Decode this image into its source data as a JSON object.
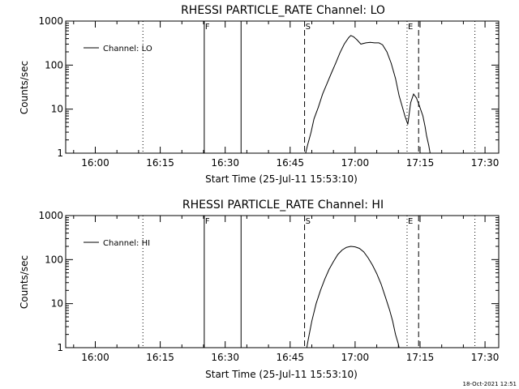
{
  "footer": {
    "timestamp": "18-Oct-2021 12:51"
  },
  "chart_data": [
    {
      "type": "line",
      "title": "RHESSI PARTICLE_RATE Channel: LO",
      "xlabel": "Start Time (25-Jul-11 15:53:10)",
      "ylabel": "Counts/sec",
      "legend": "Channel: LO",
      "legend_position": "top-left",
      "yscale": "log",
      "ylim": [
        1,
        1000
      ],
      "xlim": [
        "15:53:10",
        "17:33:10"
      ],
      "x_ticks": [
        "16:00",
        "16:15",
        "16:30",
        "16:45",
        "17:00",
        "17:15",
        "17:30"
      ],
      "y_ticks": [
        "1",
        "10",
        "100",
        "1000"
      ],
      "grid": false,
      "vertical_lines": [
        {
          "time": "16:11:00",
          "style": "dotted",
          "label": ""
        },
        {
          "time": "16:25:10",
          "style": "solid",
          "label": "F"
        },
        {
          "time": "16:33:40",
          "style": "solid",
          "label": ""
        },
        {
          "time": "16:48:20",
          "style": "dashed",
          "label": "S"
        },
        {
          "time": "17:12:00",
          "style": "dotted",
          "label": "E"
        },
        {
          "time": "17:14:40",
          "style": "dashed",
          "label": ""
        },
        {
          "time": "17:27:40",
          "style": "dotted",
          "label": ""
        }
      ],
      "series": [
        {
          "name": "Channel: LO",
          "points": [
            [
              "16:48:20",
              0.8
            ],
            [
              "16:49:00",
              1.5
            ],
            [
              "16:49:50",
              3.0
            ],
            [
              "16:50:30",
              6.0
            ],
            [
              "16:51:30",
              11
            ],
            [
              "16:52:30",
              22
            ],
            [
              "16:53:30",
              38
            ],
            [
              "16:54:30",
              65
            ],
            [
              "16:55:30",
              110
            ],
            [
              "16:56:30",
              190
            ],
            [
              "16:57:30",
              300
            ],
            [
              "16:58:30",
              420
            ],
            [
              "16:59:00",
              470
            ],
            [
              "16:59:40",
              440
            ],
            [
              "17:00:30",
              370
            ],
            [
              "17:01:20",
              300
            ],
            [
              "17:02:30",
              320
            ],
            [
              "17:03:30",
              330
            ],
            [
              "17:04:30",
              320
            ],
            [
              "17:05:30",
              320
            ],
            [
              "17:06:20",
              290
            ],
            [
              "17:07:20",
              200
            ],
            [
              "17:08:20",
              110
            ],
            [
              "17:09:20",
              50
            ],
            [
              "17:10:10",
              20
            ],
            [
              "17:10:50",
              12
            ],
            [
              "17:11:30",
              7
            ],
            [
              "17:12:10",
              4.5
            ],
            [
              "17:12:50",
              14
            ],
            [
              "17:13:30",
              22
            ],
            [
              "17:14:10",
              18
            ],
            [
              "17:14:50",
              12
            ],
            [
              "17:15:40",
              7
            ],
            [
              "17:16:10",
              4
            ],
            [
              "17:16:30",
              2.5
            ],
            [
              "17:17:00",
              1.5
            ],
            [
              "17:17:30",
              0.8
            ]
          ]
        }
      ]
    },
    {
      "type": "line",
      "title": "RHESSI PARTICLE_RATE Channel: HI",
      "xlabel": "Start Time (25-Jul-11 15:53:10)",
      "ylabel": "Counts/sec",
      "legend": "Channel: HI",
      "legend_position": "top-left",
      "yscale": "log",
      "ylim": [
        1,
        1000
      ],
      "xlim": [
        "15:53:10",
        "17:33:10"
      ],
      "x_ticks": [
        "16:00",
        "16:15",
        "16:30",
        "16:45",
        "17:00",
        "17:15",
        "17:30"
      ],
      "y_ticks": [
        "1",
        "10",
        "100",
        "1000"
      ],
      "grid": false,
      "vertical_lines": [
        {
          "time": "16:11:00",
          "style": "dotted",
          "label": ""
        },
        {
          "time": "16:25:10",
          "style": "solid",
          "label": "F"
        },
        {
          "time": "16:33:40",
          "style": "solid",
          "label": ""
        },
        {
          "time": "16:48:20",
          "style": "dashed",
          "label": "S"
        },
        {
          "time": "17:12:00",
          "style": "dotted",
          "label": "E"
        },
        {
          "time": "17:14:40",
          "style": "dashed",
          "label": ""
        },
        {
          "time": "17:27:40",
          "style": "dotted",
          "label": ""
        }
      ],
      "series": [
        {
          "name": "Channel: HI",
          "points": [
            [
              "16:48:40",
              0.8
            ],
            [
              "16:49:10",
              1.5
            ],
            [
              "16:50:00",
              4.0
            ],
            [
              "16:51:00",
              10
            ],
            [
              "16:52:00",
              20
            ],
            [
              "16:53:00",
              36
            ],
            [
              "16:54:00",
              60
            ],
            [
              "16:55:00",
              90
            ],
            [
              "16:56:00",
              130
            ],
            [
              "16:57:00",
              165
            ],
            [
              "16:58:00",
              190
            ],
            [
              "16:59:00",
              200
            ],
            [
              "17:00:00",
              195
            ],
            [
              "17:01:00",
              180
            ],
            [
              "17:02:00",
              150
            ],
            [
              "17:03:00",
              110
            ],
            [
              "17:04:00",
              75
            ],
            [
              "17:05:00",
              48
            ],
            [
              "17:06:00",
              28
            ],
            [
              "17:07:00",
              14
            ],
            [
              "17:08:00",
              7
            ],
            [
              "17:08:40",
              4
            ],
            [
              "17:09:20",
              2
            ],
            [
              "17:10:00",
              1.2
            ],
            [
              "17:10:20",
              0.8
            ]
          ]
        }
      ]
    }
  ]
}
